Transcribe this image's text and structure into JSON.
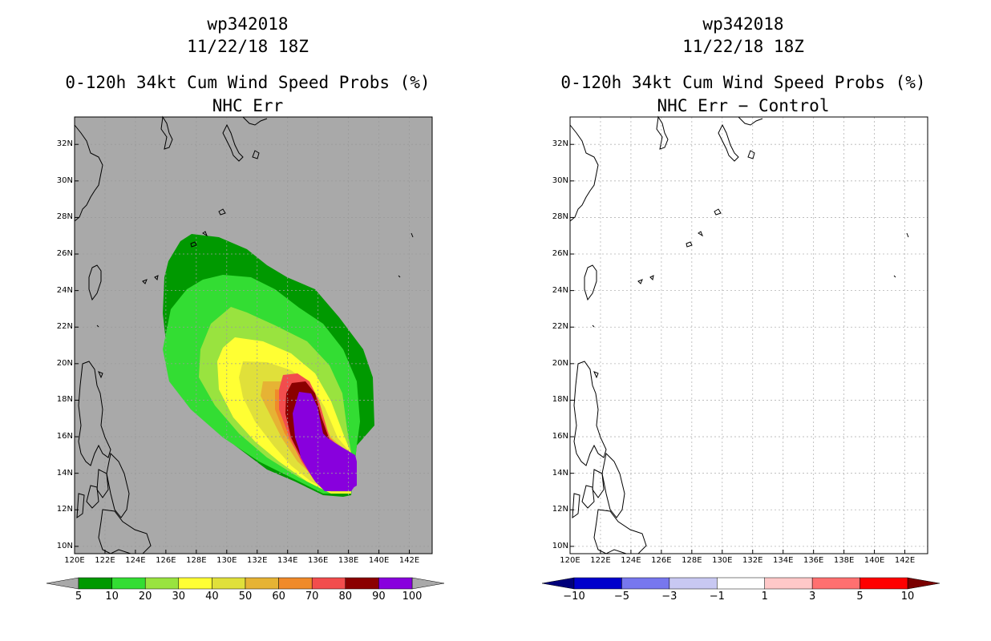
{
  "panels": [
    {
      "storm_id": "wp342018",
      "datetime": "11/22/18 18Z",
      "product_title": "0-120h 34kt Cum Wind Speed Probs (%)",
      "subtitle": "NHC Err",
      "colorbar": {
        "labels": [
          "5",
          "10",
          "20",
          "30",
          "40",
          "50",
          "60",
          "70",
          "80",
          "90",
          "100"
        ],
        "colors": [
          "#009900",
          "#33dd33",
          "#99e33f",
          "#ffff33",
          "#e0e03a",
          "#e6b334",
          "#f08a2a",
          "#f24d4d",
          "#8b0000",
          "#8800dd"
        ]
      }
    },
    {
      "storm_id": "wp342018",
      "datetime": "11/22/18 18Z",
      "product_title": "0-120h 34kt Cum Wind Speed Probs (%)",
      "subtitle": "NHC Err − Control",
      "colorbar": {
        "labels": [
          "−10",
          "−5",
          "−3",
          "−1",
          "1",
          "3",
          "5",
          "10"
        ],
        "colors": [
          "#0000cc",
          "#7777ee",
          "#c8c8f2",
          "#ffffff",
          "#ffc8c8",
          "#ff7070",
          "#ff0000"
        ]
      }
    }
  ],
  "axes": {
    "lon_labels": [
      "120E",
      "122E",
      "124E",
      "126E",
      "128E",
      "130E",
      "132E",
      "134E",
      "136E",
      "138E",
      "140E",
      "142E"
    ],
    "lat_labels": [
      "10N",
      "12N",
      "14N",
      "16N",
      "18N",
      "20N",
      "22N",
      "24N",
      "26N",
      "28N",
      "30N",
      "32N"
    ],
    "lon_range": [
      120,
      143.5
    ],
    "lat_range": [
      9.6,
      33.5
    ]
  },
  "colors": {
    "map_background_left": "#a9a9a9",
    "map_background_right": "#ffffff",
    "coastline": "#000000",
    "grid": "#b4b4b4"
  }
}
